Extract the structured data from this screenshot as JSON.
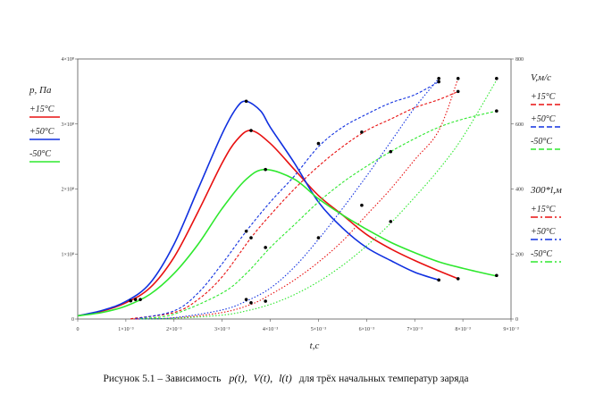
{
  "caption": {
    "prefix": "Рисунок 5.1 – Зависимость",
    "functions": [
      "p(t)",
      "V(t)",
      "l(t)"
    ],
    "suffix": "для трёх начальных температур заряда"
  },
  "colors": {
    "plus15": "#e81010",
    "plus50": "#1030e0",
    "minus50": "#2ee82e"
  },
  "chart_data": {
    "type": "line",
    "x_axis": {
      "label": "t,c",
      "range": [
        0,
        0.009
      ],
      "ticks": [
        "0",
        "1×10⁻³",
        "2×10⁻³",
        "3×10⁻³",
        "4×10⁻³",
        "5×10⁻³",
        "6×10⁻³",
        "7×10⁻³",
        "8×10⁻³",
        "9×10⁻³"
      ]
    },
    "y_left": {
      "label": "p, Па",
      "range": [
        0,
        400000000
      ],
      "ticks": [
        "0",
        "1×10⁸",
        "2×10⁸",
        "3×10⁸",
        "4×10⁸"
      ]
    },
    "y_right": {
      "range": [
        0,
        800
      ],
      "ticks": [
        "0",
        "200",
        "400",
        "600",
        "800"
      ]
    },
    "legend_groups": [
      {
        "title": "p, Па",
        "entries": [
          {
            "label": "+15°C",
            "color_key": "plus15",
            "dash": "solid"
          },
          {
            "label": "+50°C",
            "color_key": "plus50",
            "dash": "solid"
          },
          {
            "label": "-50°C",
            "color_key": "minus50",
            "dash": "solid"
          }
        ]
      },
      {
        "title": "V,м/с",
        "entries": [
          {
            "label": "+15°C",
            "color_key": "plus15",
            "dash": "dash"
          },
          {
            "label": "+50°C",
            "color_key": "plus50",
            "dash": "dash"
          },
          {
            "label": "-50°C",
            "color_key": "minus50",
            "dash": "dash"
          }
        ]
      },
      {
        "title": "300*l,м",
        "entries": [
          {
            "label": "+15°C",
            "color_key": "plus15",
            "dash": "dashdot"
          },
          {
            "label": "+50°C",
            "color_key": "plus50",
            "dash": "dashdot"
          },
          {
            "label": "-50°C",
            "color_key": "minus50",
            "dash": "dashdot"
          }
        ]
      }
    ],
    "series": [
      {
        "name": "p, +15°C",
        "axis": "left",
        "color_key": "plus15",
        "dash": "solid",
        "points": [
          [
            0,
            5000000
          ],
          [
            0.0005,
            12000000
          ],
          [
            0.001,
            25000000
          ],
          [
            0.0015,
            48000000
          ],
          [
            0.002,
            95000000
          ],
          [
            0.0025,
            165000000
          ],
          [
            0.003,
            240000000
          ],
          [
            0.0033,
            275000000
          ],
          [
            0.0036,
            290000000
          ],
          [
            0.004,
            270000000
          ],
          [
            0.0045,
            230000000
          ],
          [
            0.005,
            190000000
          ],
          [
            0.0055,
            160000000
          ],
          [
            0.006,
            130000000
          ],
          [
            0.0065,
            108000000
          ],
          [
            0.007,
            90000000
          ],
          [
            0.0075,
            74000000
          ],
          [
            0.0079,
            62000000
          ]
        ],
        "markers": [
          [
            0.0011,
            28000000
          ],
          [
            0.0036,
            290000000
          ],
          [
            0.0079,
            62000000
          ]
        ]
      },
      {
        "name": "p, +50°C",
        "axis": "left",
        "color_key": "plus50",
        "dash": "solid",
        "points": [
          [
            0,
            5000000
          ],
          [
            0.0005,
            13000000
          ],
          [
            0.001,
            27000000
          ],
          [
            0.0015,
            55000000
          ],
          [
            0.002,
            115000000
          ],
          [
            0.0025,
            200000000
          ],
          [
            0.003,
            285000000
          ],
          [
            0.0033,
            325000000
          ],
          [
            0.0035,
            335000000
          ],
          [
            0.0038,
            320000000
          ],
          [
            0.004,
            295000000
          ],
          [
            0.0045,
            240000000
          ],
          [
            0.005,
            180000000
          ],
          [
            0.0055,
            140000000
          ],
          [
            0.006,
            110000000
          ],
          [
            0.0065,
            90000000
          ],
          [
            0.007,
            72000000
          ],
          [
            0.0075,
            60000000
          ]
        ],
        "markers": [
          [
            0.0012,
            30000000
          ],
          [
            0.0035,
            335000000
          ],
          [
            0.0075,
            60000000
          ]
        ]
      },
      {
        "name": "p, -50°C",
        "axis": "left",
        "color_key": "minus50",
        "dash": "solid",
        "points": [
          [
            0,
            5000000
          ],
          [
            0.0005,
            10000000
          ],
          [
            0.001,
            20000000
          ],
          [
            0.0015,
            38000000
          ],
          [
            0.002,
            70000000
          ],
          [
            0.0025,
            115000000
          ],
          [
            0.003,
            170000000
          ],
          [
            0.0035,
            215000000
          ],
          [
            0.0039,
            230000000
          ],
          [
            0.0045,
            215000000
          ],
          [
            0.005,
            185000000
          ],
          [
            0.0055,
            160000000
          ],
          [
            0.006,
            138000000
          ],
          [
            0.0065,
            118000000
          ],
          [
            0.007,
            102000000
          ],
          [
            0.0075,
            88000000
          ],
          [
            0.008,
            78000000
          ],
          [
            0.0087,
            66000000
          ]
        ],
        "markers": [
          [
            0.0013,
            30000000
          ],
          [
            0.0039,
            230000000
          ],
          [
            0.0087,
            67000000
          ]
        ]
      },
      {
        "name": "V, +15°C",
        "axis": "right",
        "color_key": "plus15",
        "dash": "dash",
        "points": [
          [
            0.0011,
            1
          ],
          [
            0.002,
            20
          ],
          [
            0.0025,
            60
          ],
          [
            0.003,
            130
          ],
          [
            0.0036,
            250
          ],
          [
            0.004,
            320
          ],
          [
            0.0045,
            400
          ],
          [
            0.005,
            470
          ],
          [
            0.0055,
            530
          ],
          [
            0.006,
            580
          ],
          [
            0.0065,
            615
          ],
          [
            0.007,
            650
          ],
          [
            0.0075,
            675
          ],
          [
            0.0079,
            700
          ]
        ],
        "markers": [
          [
            0.0036,
            250
          ],
          [
            0.0059,
            575
          ],
          [
            0.0079,
            700
          ]
        ]
      },
      {
        "name": "V, +50°C",
        "axis": "right",
        "color_key": "plus50",
        "dash": "dash",
        "points": [
          [
            0.0012,
            1
          ],
          [
            0.002,
            25
          ],
          [
            0.0025,
            80
          ],
          [
            0.003,
            170
          ],
          [
            0.0035,
            270
          ],
          [
            0.004,
            360
          ],
          [
            0.0045,
            440
          ],
          [
            0.005,
            530
          ],
          [
            0.0055,
            590
          ],
          [
            0.006,
            630
          ],
          [
            0.0065,
            665
          ],
          [
            0.007,
            690
          ],
          [
            0.0075,
            730
          ]
        ],
        "markers": [
          [
            0.0035,
            270
          ],
          [
            0.005,
            540
          ],
          [
            0.0075,
            730
          ]
        ]
      },
      {
        "name": "V, -50°C",
        "axis": "right",
        "color_key": "minus50",
        "dash": "dash",
        "points": [
          [
            0.0013,
            1
          ],
          [
            0.002,
            15
          ],
          [
            0.003,
            80
          ],
          [
            0.0035,
            140
          ],
          [
            0.004,
            220
          ],
          [
            0.0045,
            290
          ],
          [
            0.005,
            360
          ],
          [
            0.0055,
            420
          ],
          [
            0.006,
            470
          ],
          [
            0.0065,
            515
          ],
          [
            0.007,
            555
          ],
          [
            0.0075,
            590
          ],
          [
            0.008,
            615
          ],
          [
            0.0087,
            640
          ]
        ],
        "markers": [
          [
            0.0039,
            220
          ],
          [
            0.0065,
            515
          ],
          [
            0.0087,
            640
          ]
        ]
      },
      {
        "name": "300*l, +15°C",
        "axis": "right",
        "color_key": "plus15",
        "dash": "dashdot",
        "points": [
          [
            0.0011,
            0
          ],
          [
            0.002,
            3
          ],
          [
            0.003,
            20
          ],
          [
            0.0036,
            45
          ],
          [
            0.004,
            75
          ],
          [
            0.0045,
            120
          ],
          [
            0.005,
            175
          ],
          [
            0.0055,
            240
          ],
          [
            0.006,
            320
          ],
          [
            0.0065,
            400
          ],
          [
            0.007,
            490
          ],
          [
            0.0075,
            580
          ],
          [
            0.0079,
            740
          ]
        ],
        "markers": [
          [
            0.0036,
            50
          ],
          [
            0.0059,
            350
          ],
          [
            0.0079,
            740
          ]
        ]
      },
      {
        "name": "300*l, +50°C",
        "axis": "right",
        "color_key": "plus50",
        "dash": "dashdot",
        "points": [
          [
            0.0012,
            0
          ],
          [
            0.002,
            4
          ],
          [
            0.003,
            28
          ],
          [
            0.0035,
            55
          ],
          [
            0.004,
            95
          ],
          [
            0.0045,
            160
          ],
          [
            0.005,
            245
          ],
          [
            0.0055,
            340
          ],
          [
            0.006,
            440
          ],
          [
            0.0065,
            545
          ],
          [
            0.007,
            650
          ],
          [
            0.0075,
            740
          ]
        ],
        "markers": [
          [
            0.0035,
            60
          ],
          [
            0.005,
            250
          ],
          [
            0.0075,
            740
          ]
        ]
      },
      {
        "name": "300*l, -50°C",
        "axis": "right",
        "color_key": "minus50",
        "dash": "dashdot",
        "points": [
          [
            0.0013,
            0
          ],
          [
            0.002,
            2
          ],
          [
            0.003,
            12
          ],
          [
            0.0035,
            25
          ],
          [
            0.004,
            45
          ],
          [
            0.0045,
            75
          ],
          [
            0.005,
            115
          ],
          [
            0.0055,
            165
          ],
          [
            0.006,
            225
          ],
          [
            0.0065,
            295
          ],
          [
            0.007,
            375
          ],
          [
            0.0075,
            460
          ],
          [
            0.008,
            560
          ],
          [
            0.0087,
            735
          ]
        ],
        "markers": [
          [
            0.0039,
            55
          ],
          [
            0.0065,
            300
          ],
          [
            0.0087,
            740
          ]
        ]
      }
    ]
  }
}
